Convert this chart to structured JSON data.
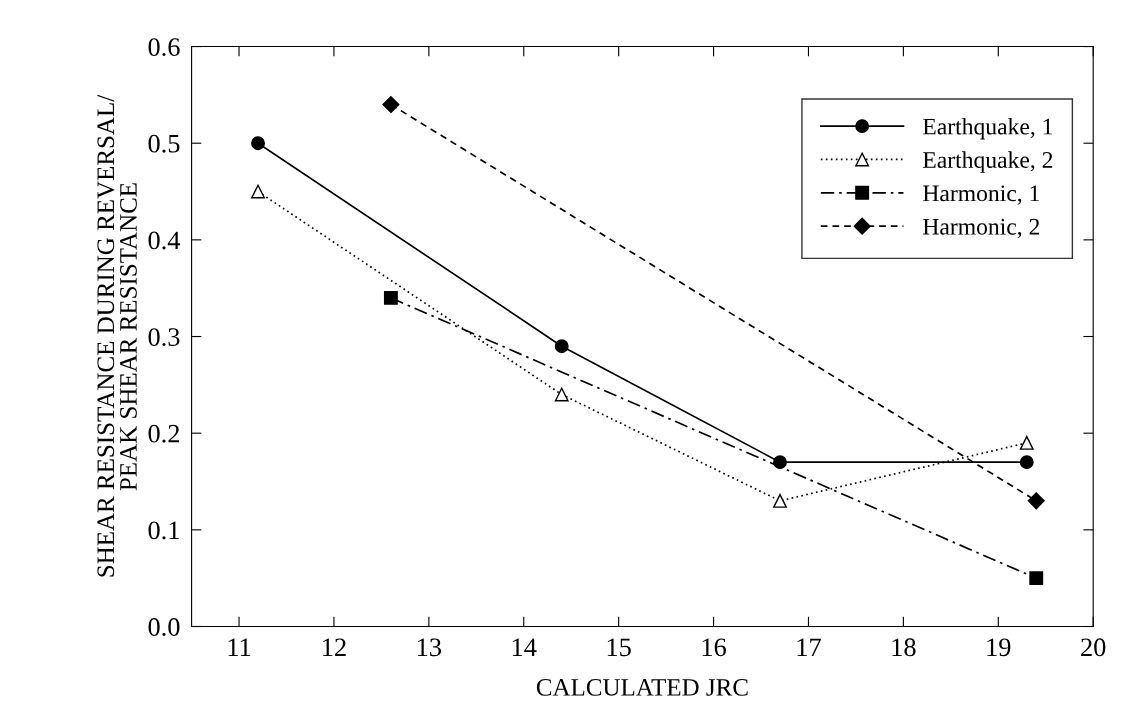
{
  "chart_data": {
    "type": "line",
    "xlabel": "CALCULATED JRC",
    "ylabel": "SHEAR RESISTANCE DURING REVERSAL/\nPEAK SHEAR RESISTANCE",
    "xlim": [
      10.5,
      20
    ],
    "xticks": [
      11,
      12,
      13,
      14,
      15,
      16,
      17,
      18,
      19,
      20
    ],
    "ylim": [
      0,
      0.6
    ],
    "yticks": [
      {
        "value": 0,
        "label": "0.0"
      },
      0.1,
      0.2,
      0.3,
      0.4,
      0.5,
      0.6
    ],
    "grid": false,
    "legend": "top right",
    "series": [
      {
        "name": "Earthquake, 1",
        "color": "#000000",
        "marker": "circle",
        "line_style": "solid",
        "x": [
          11.2,
          14.4,
          16.7,
          19.3
        ],
        "values": [
          0.5,
          0.29,
          0.17,
          0.17
        ]
      },
      {
        "name": "Earthquake, 2",
        "color": "#000000",
        "marker": "triangle",
        "line_style": "dotted",
        "x": [
          11.2,
          14.4,
          16.7,
          19.3
        ],
        "values": [
          0.45,
          0.24,
          0.13,
          0.19
        ]
      },
      {
        "name": "Harmonic, 1",
        "color": "#000000",
        "marker": "square",
        "line_style": "dashdot",
        "x": [
          12.6,
          19.4
        ],
        "values": [
          0.34,
          0.05
        ]
      },
      {
        "name": "Harmonic, 2",
        "color": "#000000",
        "marker": "diamond",
        "line_style": "dashed",
        "x": [
          12.6,
          19.4
        ],
        "values": [
          0.54,
          0.13
        ]
      }
    ]
  }
}
